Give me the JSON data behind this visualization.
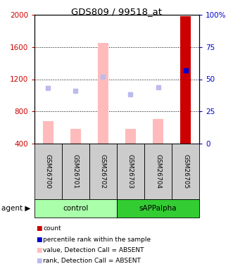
{
  "title": "GDS809 / 99518_at",
  "samples": [
    "GSM26700",
    "GSM26701",
    "GSM26702",
    "GSM26703",
    "GSM26704",
    "GSM26705"
  ],
  "bar_values": [
    680,
    590,
    1650,
    590,
    710,
    1980
  ],
  "bar_color": "#ffbbbb",
  "bar_color_last": "#cc0000",
  "dot_values": [
    1090,
    1060,
    1230,
    1010,
    1100,
    1310
  ],
  "dot_color": "#bbbbee",
  "dot_color_last": "#0000cc",
  "ylim_left": [
    400,
    2000
  ],
  "ylim_right": [
    0,
    100
  ],
  "yticks_left": [
    400,
    800,
    1200,
    1600,
    2000
  ],
  "yticks_right": [
    0,
    25,
    50,
    75,
    100
  ],
  "ytick_labels_left": [
    "400",
    "800",
    "1200",
    "1600",
    "2000"
  ],
  "ytick_labels_right": [
    "0",
    "25",
    "50",
    "75",
    "100%"
  ],
  "left_tick_color": "#cc0000",
  "right_tick_color": "#0000cc",
  "control_color": "#aaffaa",
  "sapp_color": "#33cc33",
  "sample_bg": "#cccccc",
  "legend_items": [
    {
      "color": "#cc0000",
      "label": "count"
    },
    {
      "color": "#0000cc",
      "label": "percentile rank within the sample"
    },
    {
      "color": "#ffbbbb",
      "label": "value, Detection Call = ABSENT"
    },
    {
      "color": "#bbbbee",
      "label": "rank, Detection Call = ABSENT"
    }
  ]
}
